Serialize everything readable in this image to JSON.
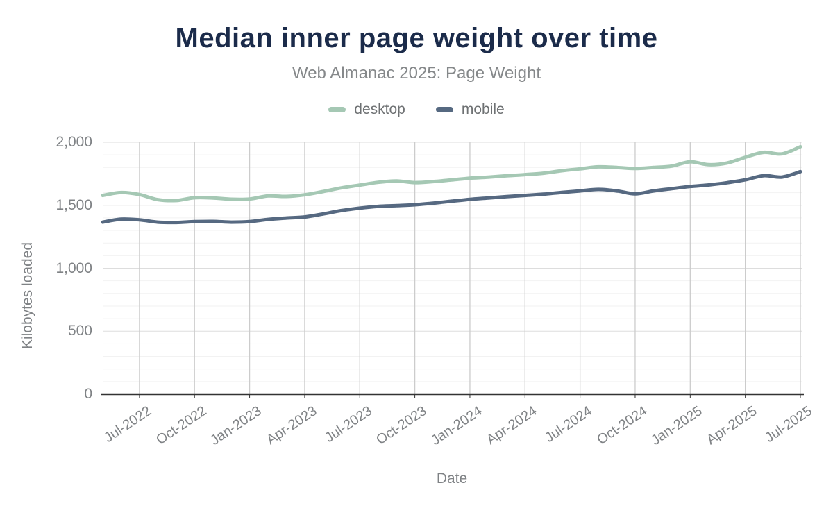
{
  "chart_data": {
    "type": "line",
    "title": "Median inner page weight over time",
    "subtitle": "Web Almanac 2025: Page Weight",
    "xlabel": "Date",
    "ylabel": "Kilobytes loaded",
    "ylim": [
      0,
      2000
    ],
    "y_major_step": 500,
    "y_minor_step": 100,
    "y_tick_labels": [
      "0",
      "500",
      "1,000",
      "1,500",
      "2,000"
    ],
    "grid": true,
    "legend_position": "top",
    "x": [
      "May-2022",
      "Jun-2022",
      "Jul-2022",
      "Aug-2022",
      "Sep-2022",
      "Oct-2022",
      "Nov-2022",
      "Dec-2022",
      "Jan-2023",
      "Feb-2023",
      "Mar-2023",
      "Apr-2023",
      "May-2023",
      "Jun-2023",
      "Jul-2023",
      "Aug-2023",
      "Sep-2023",
      "Oct-2023",
      "Nov-2023",
      "Dec-2023",
      "Jan-2024",
      "Feb-2024",
      "Mar-2024",
      "Apr-2024",
      "May-2024",
      "Jun-2024",
      "Jul-2024",
      "Aug-2024",
      "Sep-2024",
      "Oct-2024",
      "Nov-2024",
      "Dec-2024",
      "Jan-2025",
      "Feb-2025",
      "Mar-2025",
      "Apr-2025",
      "May-2025",
      "Jun-2025",
      "Jul-2025"
    ],
    "x_tick_labels": [
      "Jul-2022",
      "Oct-2022",
      "Jan-2023",
      "Apr-2023",
      "Jul-2023",
      "Oct-2023",
      "Jan-2024",
      "Apr-2024",
      "Jul-2024",
      "Oct-2024",
      "Jan-2025",
      "Apr-2025",
      "Jul-2025"
    ],
    "x_tick_indices": [
      2,
      5,
      8,
      11,
      14,
      17,
      20,
      23,
      26,
      29,
      32,
      35,
      38
    ],
    "series": [
      {
        "name": "desktop",
        "color": "#a5c8b4",
        "values": [
          1578,
          1601,
          1585,
          1545,
          1538,
          1560,
          1558,
          1548,
          1550,
          1574,
          1570,
          1583,
          1609,
          1638,
          1660,
          1682,
          1693,
          1680,
          1688,
          1701,
          1715,
          1723,
          1734,
          1743,
          1754,
          1774,
          1789,
          1805,
          1800,
          1792,
          1800,
          1811,
          1845,
          1822,
          1835,
          1881,
          1920,
          1908,
          1965
        ]
      },
      {
        "name": "mobile",
        "color": "#566981",
        "values": [
          1366,
          1390,
          1384,
          1366,
          1363,
          1370,
          1372,
          1366,
          1370,
          1388,
          1399,
          1407,
          1431,
          1458,
          1477,
          1491,
          1497,
          1504,
          1517,
          1532,
          1547,
          1558,
          1569,
          1578,
          1588,
          1602,
          1614,
          1626,
          1614,
          1591,
          1614,
          1632,
          1649,
          1661,
          1679,
          1702,
          1735,
          1724,
          1767
        ]
      }
    ],
    "colors": {
      "title": "#1b2b4a",
      "subtitle": "#85888a",
      "tick_label": "#7f8285",
      "axis_line": "#333333",
      "grid_vertical": "#cccccc",
      "grid_major_horizontal": "#dddddd",
      "grid_minor_horizontal": "#f2f2f2"
    }
  }
}
